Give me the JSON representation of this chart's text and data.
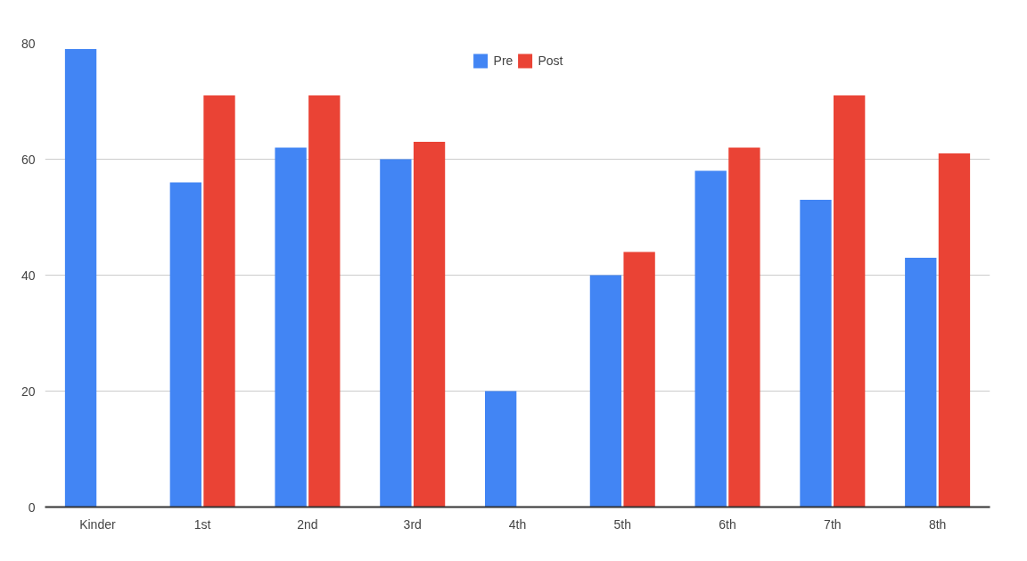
{
  "chart_data": {
    "type": "bar",
    "categories": [
      "Kinder",
      "1st",
      "2nd",
      "3rd",
      "4th",
      "5th",
      "6th",
      "7th",
      "8th"
    ],
    "series": [
      {
        "name": "Pre",
        "color": "#4285f4",
        "values": [
          79,
          56,
          62,
          60,
          20,
          40,
          58,
          53,
          43
        ]
      },
      {
        "name": "Post",
        "color": "#ea4335",
        "values": [
          null,
          71,
          71,
          63,
          null,
          44,
          62,
          71,
          61
        ]
      }
    ],
    "ylim": [
      0,
      80
    ],
    "yticks": [
      0,
      20,
      40,
      60,
      80
    ],
    "grid": "y",
    "legend": "top"
  }
}
